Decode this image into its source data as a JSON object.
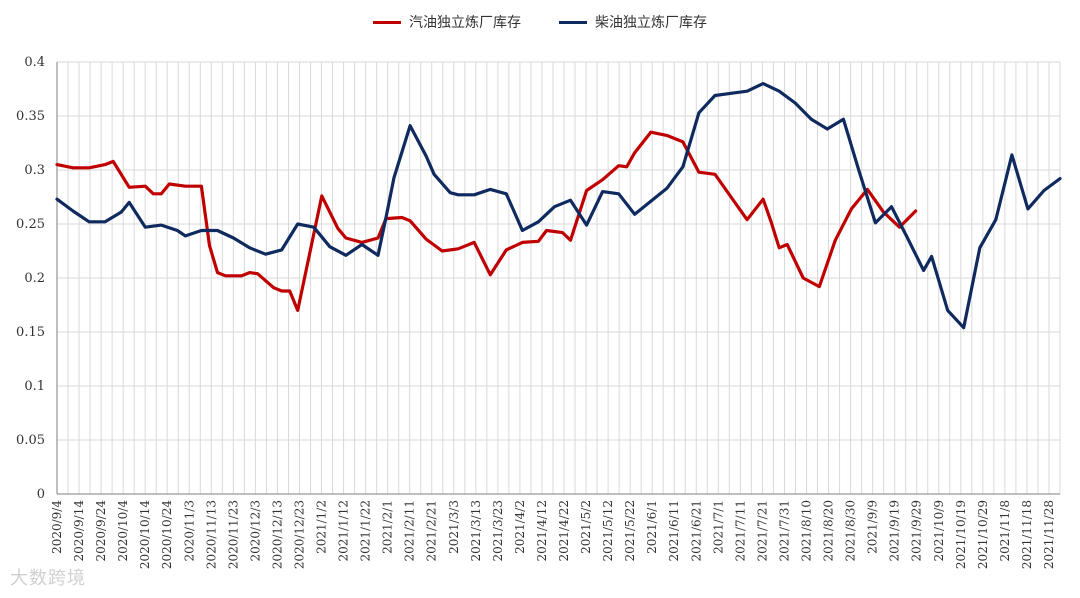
{
  "chart_data": {
    "type": "line",
    "ylim": [
      0,
      0.4
    ],
    "yticks": [
      "0",
      "0.05",
      "0.1",
      "0.15",
      "0.2",
      "0.25",
      "0.3",
      "0.35",
      "0.4"
    ],
    "grid": true,
    "legend_position": "top-center",
    "x": [
      "2020/9/4",
      "2020/9/9",
      "2020/9/14",
      "2020/9/19",
      "2020/9/24",
      "2020/9/29",
      "2020/10/4",
      "2020/10/9",
      "2020/10/14",
      "2020/10/19",
      "2020/10/24",
      "2020/10/29",
      "2020/11/3",
      "2020/11/8",
      "2020/11/13",
      "2020/11/18",
      "2020/11/23",
      "2020/11/28",
      "2020/12/3",
      "2020/12/8",
      "2020/12/13",
      "2020/12/18",
      "2020/12/23",
      "2020/12/28",
      "2021/1/2",
      "2021/1/7",
      "2021/1/12",
      "2021/1/17",
      "2021/1/22",
      "2021/1/27",
      "2021/2/1",
      "2021/2/6",
      "2021/2/11",
      "2021/2/16",
      "2021/2/21",
      "2021/2/26",
      "2021/3/3",
      "2021/3/8",
      "2021/3/13",
      "2021/3/18",
      "2021/3/23",
      "2021/3/28",
      "2021/4/2",
      "2021/4/7",
      "2021/4/12",
      "2021/4/17",
      "2021/4/22",
      "2021/4/27",
      "2021/5/2",
      "2021/5/7",
      "2021/5/12",
      "2021/5/17",
      "2021/5/22",
      "2021/5/27",
      "2021/6/1",
      "2021/6/6",
      "2021/6/11",
      "2021/6/16",
      "2021/6/21",
      "2021/6/26",
      "2021/7/1",
      "2021/7/6",
      "2021/7/11",
      "2021/7/16",
      "2021/7/21",
      "2021/7/26",
      "2021/7/31",
      "2021/8/5",
      "2021/8/10",
      "2021/8/15",
      "2021/8/20",
      "2021/8/25",
      "2021/8/30",
      "2021/9/4",
      "2021/9/9",
      "2021/9/14",
      "2021/9/19",
      "2021/9/24",
      "2021/9/29",
      "2021/10/4",
      "2021/10/9",
      "2021/10/14",
      "2021/10/19",
      "2021/10/24",
      "2021/10/29",
      "2021/11/3",
      "2021/11/8",
      "2021/11/13",
      "2021/11/18",
      "2021/11/23",
      "2021/11/28",
      "2021/12/3"
    ],
    "tick_every": 2,
    "series": [
      {
        "name": "汽油独立炼厂库存",
        "color": "#c00000",
        "points": [
          [
            0,
            0.305
          ],
          [
            2,
            0.302
          ],
          [
            4,
            0.302
          ],
          [
            6,
            0.305
          ],
          [
            7,
            0.308
          ],
          [
            9,
            0.284
          ],
          [
            11,
            0.285
          ],
          [
            12,
            0.278
          ],
          [
            13,
            0.278
          ],
          [
            14,
            0.287
          ],
          [
            16,
            0.285
          ],
          [
            17,
            0.285
          ],
          [
            18,
            0.285
          ],
          [
            19,
            0.23
          ],
          [
            20,
            0.205
          ],
          [
            21,
            0.202
          ],
          [
            23,
            0.202
          ],
          [
            24,
            0.205
          ],
          [
            25,
            0.204
          ],
          [
            27,
            0.191
          ],
          [
            28,
            0.188
          ],
          [
            29,
            0.188
          ],
          [
            30,
            0.17
          ],
          [
            33,
            0.276
          ],
          [
            35,
            0.246
          ],
          [
            36,
            0.237
          ],
          [
            38,
            0.233
          ],
          [
            40,
            0.237
          ],
          [
            41,
            0.255
          ],
          [
            43,
            0.256
          ],
          [
            44,
            0.253
          ],
          [
            46,
            0.236
          ],
          [
            48,
            0.225
          ],
          [
            50,
            0.227
          ],
          [
            52,
            0.233
          ],
          [
            54,
            0.203
          ],
          [
            56,
            0.226
          ],
          [
            58,
            0.233
          ],
          [
            60,
            0.234
          ],
          [
            61,
            0.244
          ],
          [
            63,
            0.242
          ],
          [
            64,
            0.235
          ],
          [
            66,
            0.281
          ],
          [
            68,
            0.291
          ],
          [
            70,
            0.304
          ],
          [
            71,
            0.303
          ],
          [
            72,
            0.316
          ],
          [
            74,
            0.335
          ],
          [
            76,
            0.332
          ],
          [
            78,
            0.326
          ],
          [
            80,
            0.298
          ],
          [
            82,
            0.296
          ],
          [
            84,
            0.275
          ],
          [
            86,
            0.254
          ],
          [
            88,
            0.273
          ],
          [
            89,
            0.252
          ],
          [
            90,
            0.228
          ],
          [
            91,
            0.231
          ],
          [
            93,
            0.2
          ],
          [
            95,
            0.192
          ],
          [
            97,
            0.235
          ],
          [
            99,
            0.264
          ],
          [
            101,
            0.282
          ],
          [
            103,
            0.261
          ],
          [
            105,
            0.247
          ],
          [
            107,
            0.262
          ]
        ]
      },
      {
        "name": "柴油独立炼厂库存",
        "color": "#0f2a5f",
        "points": [
          [
            0,
            0.273
          ],
          [
            2,
            0.262
          ],
          [
            4,
            0.252
          ],
          [
            6,
            0.252
          ],
          [
            8,
            0.261
          ],
          [
            9,
            0.27
          ],
          [
            11,
            0.247
          ],
          [
            13,
            0.249
          ],
          [
            15,
            0.244
          ],
          [
            16,
            0.239
          ],
          [
            18,
            0.244
          ],
          [
            20,
            0.244
          ],
          [
            22,
            0.237
          ],
          [
            24,
            0.228
          ],
          [
            26,
            0.222
          ],
          [
            28,
            0.226
          ],
          [
            30,
            0.25
          ],
          [
            32,
            0.247
          ],
          [
            34,
            0.229
          ],
          [
            36,
            0.221
          ],
          [
            38,
            0.231
          ],
          [
            40,
            0.221
          ],
          [
            41,
            0.256
          ],
          [
            42,
            0.293
          ],
          [
            44,
            0.341
          ],
          [
            46,
            0.313
          ],
          [
            47,
            0.296
          ],
          [
            49,
            0.279
          ],
          [
            50,
            0.277
          ],
          [
            52,
            0.277
          ],
          [
            54,
            0.282
          ],
          [
            56,
            0.278
          ],
          [
            58,
            0.244
          ],
          [
            60,
            0.252
          ],
          [
            62,
            0.266
          ],
          [
            64,
            0.272
          ],
          [
            66,
            0.249
          ],
          [
            68,
            0.28
          ],
          [
            70,
            0.278
          ],
          [
            72,
            0.259
          ],
          [
            74,
            0.271
          ],
          [
            76,
            0.283
          ],
          [
            78,
            0.303
          ],
          [
            80,
            0.353
          ],
          [
            82,
            0.369
          ],
          [
            84,
            0.371
          ],
          [
            86,
            0.373
          ],
          [
            88,
            0.38
          ],
          [
            90,
            0.373
          ],
          [
            92,
            0.362
          ],
          [
            94,
            0.347
          ],
          [
            96,
            0.338
          ],
          [
            98,
            0.347
          ],
          [
            100,
            0.298
          ],
          [
            102,
            0.251
          ],
          [
            104,
            0.266
          ],
          [
            106,
            0.237
          ],
          [
            108,
            0.207
          ],
          [
            109,
            0.22
          ],
          [
            111,
            0.17
          ],
          [
            113,
            0.154
          ],
          [
            115,
            0.228
          ],
          [
            117,
            0.254
          ],
          [
            119,
            0.314
          ],
          [
            121,
            0.264
          ],
          [
            123,
            0.281
          ],
          [
            125,
            0.292
          ]
        ]
      }
    ]
  },
  "watermark": "大数跨境"
}
